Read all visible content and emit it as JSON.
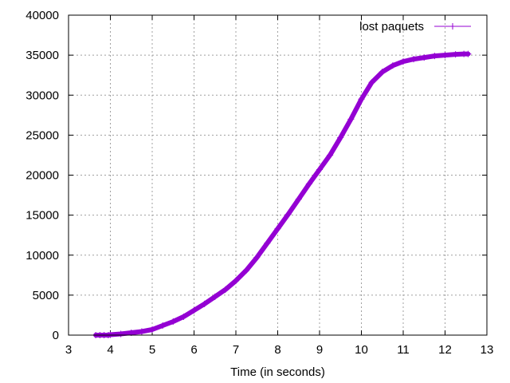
{
  "chart_data": {
    "type": "scatter",
    "title": "",
    "xlabel": "Time (in seconds)",
    "ylabel": "",
    "xlim": [
      3,
      13
    ],
    "ylim": [
      0,
      40000
    ],
    "x_ticks": [
      3,
      4,
      5,
      6,
      7,
      8,
      9,
      10,
      11,
      12,
      13
    ],
    "y_ticks": [
      0,
      5000,
      10000,
      15000,
      20000,
      25000,
      30000,
      35000,
      40000
    ],
    "grid": true,
    "legend_position": "top-right",
    "series": [
      {
        "name": "lost paquets",
        "color": "#9400d3",
        "marker": "plus",
        "x": [
          3.65,
          3.75,
          3.85,
          3.95,
          4.0,
          4.25,
          4.5,
          4.75,
          5.0,
          5.25,
          5.5,
          5.75,
          6.0,
          6.25,
          6.5,
          6.75,
          7.0,
          7.25,
          7.5,
          7.75,
          8.0,
          8.25,
          8.5,
          8.75,
          9.0,
          9.25,
          9.5,
          9.75,
          10.0,
          10.25,
          10.5,
          10.75,
          11.0,
          11.25,
          11.5,
          11.75,
          12.0,
          12.25,
          12.45,
          12.55
        ],
        "y": [
          0,
          0,
          0,
          0,
          50,
          150,
          300,
          450,
          700,
          1200,
          1700,
          2300,
          3100,
          3900,
          4800,
          5700,
          6800,
          8100,
          9700,
          11500,
          13300,
          15100,
          17000,
          18900,
          20700,
          22500,
          24700,
          27000,
          29500,
          31600,
          32900,
          33700,
          34200,
          34500,
          34700,
          34900,
          35000,
          35100,
          35150,
          35150
        ]
      }
    ]
  }
}
